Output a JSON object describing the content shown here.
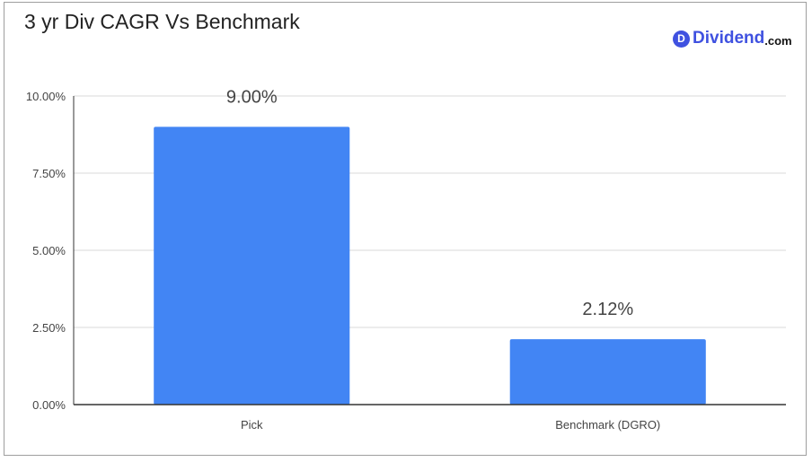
{
  "chart_data": {
    "type": "bar",
    "title": "3 yr Div CAGR Vs Benchmark",
    "categories": [
      "Pick",
      "Benchmark (DGRO)"
    ],
    "values": [
      9.0,
      2.12
    ],
    "data_labels": [
      "9.00%",
      "2.12%"
    ],
    "ylim": [
      0,
      10
    ],
    "yticks": [
      0,
      2.5,
      5,
      7.5,
      10
    ],
    "ytick_labels": [
      "0.00%",
      "2.50%",
      "5.00%",
      "7.50%",
      "10.00%"
    ],
    "xlabel": "",
    "ylabel": "",
    "grid": true,
    "bar_color": "#4285f4"
  },
  "logo": {
    "badge": "D",
    "word": "Dividend",
    "suffix": ".com",
    "color": "#3f51e0"
  }
}
